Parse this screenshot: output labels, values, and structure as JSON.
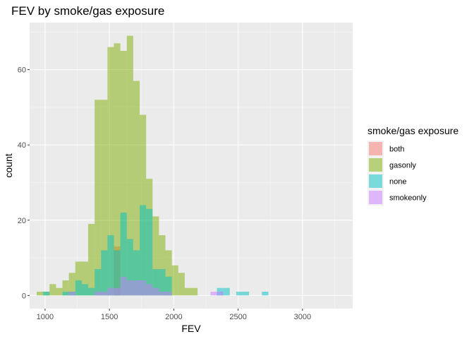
{
  "chart_data": {
    "type": "histogram",
    "title": "FEV by smoke/gas exposure",
    "xlabel": "FEV",
    "ylabel": "count",
    "xlim": [
      880,
      3390
    ],
    "ylim": [
      -3.5,
      72.5
    ],
    "x_ticks": [
      1000,
      1500,
      2000,
      2500,
      3000
    ],
    "y_ticks": [
      0,
      20,
      40,
      60
    ],
    "bin_start": 935,
    "bin_width": 50,
    "alpha": 0.5,
    "grid": true,
    "legend_position": "right",
    "legend_title": "smoke/gas exposure",
    "series": [
      {
        "name": "both",
        "color": "#F8766D",
        "values": [
          0,
          0,
          0,
          0,
          0,
          0,
          0,
          0,
          0,
          0,
          0,
          0,
          13,
          0,
          0,
          0,
          0,
          0,
          0,
          0,
          0,
          0,
          0,
          0,
          0,
          0,
          0,
          0,
          0,
          0,
          0,
          0,
          0,
          0,
          0,
          0,
          0,
          0,
          0,
          0,
          0,
          0,
          0,
          0,
          0,
          0,
          0,
          0
        ]
      },
      {
        "name": "gasonly",
        "color": "#7CAE00",
        "values": [
          1,
          1,
          3,
          2,
          4,
          6,
          9,
          9,
          19,
          52,
          52,
          66,
          67,
          65,
          69,
          57,
          48,
          31,
          21,
          16,
          12,
          8,
          6,
          2,
          2,
          0,
          0,
          0,
          0,
          0,
          0,
          0,
          0
        ]
      },
      {
        "name": "none",
        "color": "#00BFC4",
        "values": [
          0,
          1,
          0,
          0,
          1,
          1,
          4,
          3,
          2,
          7,
          12,
          16,
          12,
          22,
          15,
          12,
          24,
          23,
          7,
          7,
          5,
          0,
          0,
          0,
          0,
          0,
          0,
          0,
          2,
          2,
          0,
          1,
          1,
          0,
          0,
          1
        ]
      },
      {
        "name": "smokeonly",
        "color": "#C77CFF",
        "values": [
          0,
          0,
          0,
          0,
          0,
          1,
          0,
          0,
          0,
          1,
          1,
          2,
          2,
          5,
          4,
          4,
          4,
          3,
          2,
          1,
          1,
          0,
          0,
          0,
          0,
          0,
          0,
          1,
          1,
          0,
          0,
          0,
          0,
          0,
          0,
          0
        ]
      }
    ]
  }
}
